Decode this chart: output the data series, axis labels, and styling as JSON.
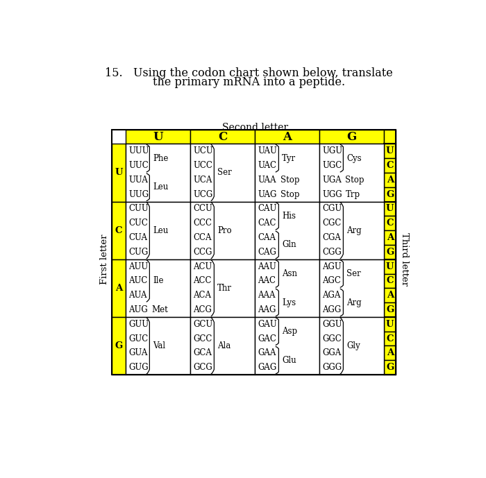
{
  "title_line1": "15.   Using the codon chart shown below, translate",
  "title_line2": "the primary mRNA into a peptide.",
  "second_letter_label": "Second letter",
  "first_letter_label": "First letter",
  "third_letter_label": "Third letter",
  "second_letters": [
    "U",
    "C",
    "A",
    "G"
  ],
  "first_letters": [
    "U",
    "C",
    "A",
    "G"
  ],
  "third_letters": [
    "U",
    "C",
    "A",
    "G"
  ],
  "yellow_color": "#FFFF00",
  "white_color": "#FFFFFF",
  "black_color": "#000000",
  "cells": [
    {
      "row": 0,
      "col": 0,
      "codons": [
        "UUU",
        "UUC",
        "UUA",
        "UUG"
      ],
      "groups": [
        {
          "start": 0,
          "end": 1,
          "label": "Phe",
          "inline": false
        },
        {
          "start": 2,
          "end": 3,
          "label": "Leu",
          "inline": false
        }
      ]
    },
    {
      "row": 0,
      "col": 1,
      "codons": [
        "UCU",
        "UCC",
        "UCA",
        "UCG"
      ],
      "groups": [
        {
          "start": 0,
          "end": 3,
          "label": "Ser",
          "inline": false
        }
      ]
    },
    {
      "row": 0,
      "col": 2,
      "codons": [
        "UAU",
        "UAC",
        "UAA",
        "UAG"
      ],
      "groups": [
        {
          "start": 0,
          "end": 1,
          "label": "Tyr",
          "inline": false
        },
        {
          "start": 2,
          "end": 2,
          "label": "Stop",
          "inline": true
        },
        {
          "start": 3,
          "end": 3,
          "label": "Stop",
          "inline": true
        }
      ]
    },
    {
      "row": 0,
      "col": 3,
      "codons": [
        "UGU",
        "UGC",
        "UGA",
        "UGG"
      ],
      "groups": [
        {
          "start": 0,
          "end": 1,
          "label": "Cys",
          "inline": false
        },
        {
          "start": 2,
          "end": 2,
          "label": "Stop",
          "inline": true
        },
        {
          "start": 3,
          "end": 3,
          "label": "Trp",
          "inline": true
        }
      ]
    },
    {
      "row": 1,
      "col": 0,
      "codons": [
        "CUU",
        "CUC",
        "CUA",
        "CUG"
      ],
      "groups": [
        {
          "start": 0,
          "end": 3,
          "label": "Leu",
          "inline": false
        }
      ]
    },
    {
      "row": 1,
      "col": 1,
      "codons": [
        "CCU",
        "CCC",
        "CCA",
        "CCG"
      ],
      "groups": [
        {
          "start": 0,
          "end": 3,
          "label": "Pro",
          "inline": false
        }
      ]
    },
    {
      "row": 1,
      "col": 2,
      "codons": [
        "CAU",
        "CAC",
        "CAA",
        "CAG"
      ],
      "groups": [
        {
          "start": 0,
          "end": 1,
          "label": "His",
          "inline": false
        },
        {
          "start": 2,
          "end": 3,
          "label": "Gln",
          "inline": false
        }
      ]
    },
    {
      "row": 1,
      "col": 3,
      "codons": [
        "CGU",
        "CGC",
        "CGA",
        "CGG"
      ],
      "groups": [
        {
          "start": 0,
          "end": 3,
          "label": "Arg",
          "inline": false
        }
      ]
    },
    {
      "row": 2,
      "col": 0,
      "codons": [
        "AUU",
        "AUC",
        "AUA",
        "AUG"
      ],
      "groups": [
        {
          "start": 0,
          "end": 2,
          "label": "Ile",
          "inline": false
        },
        {
          "start": 3,
          "end": 3,
          "label": "Met",
          "inline": true
        }
      ]
    },
    {
      "row": 2,
      "col": 1,
      "codons": [
        "ACU",
        "ACC",
        "ACA",
        "ACG"
      ],
      "groups": [
        {
          "start": 0,
          "end": 3,
          "label": "Thr",
          "inline": false
        }
      ]
    },
    {
      "row": 2,
      "col": 2,
      "codons": [
        "AAU",
        "AAC",
        "AAA",
        "AAG"
      ],
      "groups": [
        {
          "start": 0,
          "end": 1,
          "label": "Asn",
          "inline": false
        },
        {
          "start": 2,
          "end": 3,
          "label": "Lys",
          "inline": false
        }
      ]
    },
    {
      "row": 2,
      "col": 3,
      "codons": [
        "AGU",
        "AGC",
        "AGA",
        "AGG"
      ],
      "groups": [
        {
          "start": 0,
          "end": 1,
          "label": "Ser",
          "inline": false
        },
        {
          "start": 2,
          "end": 3,
          "label": "Arg",
          "inline": false
        }
      ]
    },
    {
      "row": 3,
      "col": 0,
      "codons": [
        "GUU",
        "GUC",
        "GUA",
        "GUG"
      ],
      "groups": [
        {
          "start": 0,
          "end": 3,
          "label": "Val",
          "inline": false
        }
      ]
    },
    {
      "row": 3,
      "col": 1,
      "codons": [
        "GCU",
        "GCC",
        "GCA",
        "GCG"
      ],
      "groups": [
        {
          "start": 0,
          "end": 3,
          "label": "Ala",
          "inline": false
        }
      ]
    },
    {
      "row": 3,
      "col": 2,
      "codons": [
        "GAU",
        "GAC",
        "GAA",
        "GAG"
      ],
      "groups": [
        {
          "start": 0,
          "end": 1,
          "label": "Asp",
          "inline": false
        },
        {
          "start": 2,
          "end": 3,
          "label": "Glu",
          "inline": false
        }
      ]
    },
    {
      "row": 3,
      "col": 3,
      "codons": [
        "GGU",
        "GGC",
        "GGA",
        "GGG"
      ],
      "groups": [
        {
          "start": 0,
          "end": 3,
          "label": "Gly",
          "inline": false
        }
      ]
    }
  ]
}
